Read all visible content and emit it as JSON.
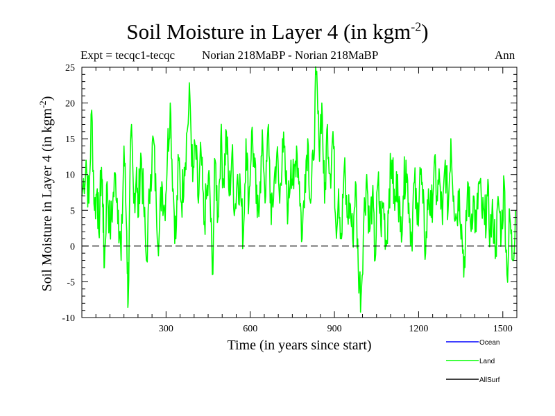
{
  "chart_data": {
    "type": "line",
    "title": "Soil Moisture in Layer 4 (in kgm",
    "title_sup": "-2",
    "title_close": ")",
    "expt_label": "Expt = tecqc1-tecqc",
    "comparison": "Norian 218MaBP - Norian 218MaBP",
    "period": "Ann",
    "xlabel": "Time (in years since start)",
    "ylabel": "Soil Moisture in Layer 4 (in kgm",
    "ylabel_sup": "-2",
    "ylabel_close": ")",
    "xlim": [
      0,
      1550
    ],
    "ylim": [
      -10,
      25
    ],
    "xticks": [
      300,
      600,
      900,
      1200,
      1500
    ],
    "yticks": [
      -10,
      -5,
      0,
      5,
      10,
      15,
      20,
      25
    ],
    "reference_line": 0,
    "legend": [
      {
        "name": "Ocean",
        "color": "#0000ff"
      },
      {
        "name": "Land",
        "color": "#00ff00"
      },
      {
        "name": "AllSurf",
        "color": "#000000"
      }
    ],
    "series": [
      {
        "name": "Land",
        "color": "#00ff00",
        "anchors": [
          [
            0,
            7
          ],
          [
            15,
            12
          ],
          [
            25,
            6
          ],
          [
            35,
            19
          ],
          [
            45,
            5
          ],
          [
            55,
            8
          ],
          [
            60,
            2
          ],
          [
            70,
            11
          ],
          [
            75,
            6
          ],
          [
            80,
            -3
          ],
          [
            90,
            9
          ],
          [
            100,
            2
          ],
          [
            110,
            6
          ],
          [
            120,
            10
          ],
          [
            130,
            5
          ],
          [
            140,
            -2
          ],
          [
            150,
            14
          ],
          [
            160,
            2
          ],
          [
            165,
            -8
          ],
          [
            175,
            16
          ],
          [
            185,
            6
          ],
          [
            195,
            11
          ],
          [
            200,
            4
          ],
          [
            210,
            13
          ],
          [
            220,
            6
          ],
          [
            230,
            -2
          ],
          [
            245,
            10
          ],
          [
            255,
            15
          ],
          [
            265,
            6
          ],
          [
            275,
            1
          ],
          [
            285,
            9
          ],
          [
            295,
            5
          ],
          [
            305,
            13
          ],
          [
            315,
            20
          ],
          [
            325,
            8
          ],
          [
            335,
            1
          ],
          [
            345,
            12
          ],
          [
            355,
            6
          ],
          [
            365,
            11
          ],
          [
            375,
            16
          ],
          [
            385,
            21
          ],
          [
            395,
            9
          ],
          [
            405,
            14
          ],
          [
            415,
            6
          ],
          [
            425,
            13
          ],
          [
            435,
            3
          ],
          [
            445,
            7
          ],
          [
            455,
            9
          ],
          [
            465,
            -4
          ],
          [
            475,
            12
          ],
          [
            485,
            4
          ],
          [
            495,
            15
          ],
          [
            505,
            9
          ],
          [
            515,
            16
          ],
          [
            525,
            7
          ],
          [
            535,
            13
          ],
          [
            545,
            5
          ],
          [
            555,
            10
          ],
          [
            565,
            8
          ],
          [
            575,
            1
          ],
          [
            585,
            15
          ],
          [
            595,
            6
          ],
          [
            605,
            16
          ],
          [
            615,
            11
          ],
          [
            625,
            4
          ],
          [
            635,
            9
          ],
          [
            645,
            14
          ],
          [
            655,
            7
          ],
          [
            665,
            17
          ],
          [
            675,
            3
          ],
          [
            685,
            9
          ],
          [
            695,
            13
          ],
          [
            705,
            6
          ],
          [
            715,
            15
          ],
          [
            725,
            10
          ],
          [
            735,
            5
          ],
          [
            745,
            12
          ],
          [
            755,
            8
          ],
          [
            765,
            14
          ],
          [
            775,
            9
          ],
          [
            785,
            1
          ],
          [
            795,
            10
          ],
          [
            805,
            15
          ],
          [
            815,
            6
          ],
          [
            825,
            12
          ],
          [
            835,
            24
          ],
          [
            845,
            14
          ],
          [
            855,
            20
          ],
          [
            865,
            6
          ],
          [
            875,
            17
          ],
          [
            885,
            10
          ],
          [
            895,
            16
          ],
          [
            905,
            3
          ],
          [
            915,
            8
          ],
          [
            925,
            1
          ],
          [
            935,
            11
          ],
          [
            945,
            4
          ],
          [
            955,
            6
          ],
          [
            965,
            1
          ],
          [
            975,
            9
          ],
          [
            985,
            -3
          ],
          [
            995,
            -7
          ],
          [
            1005,
            4
          ],
          [
            1015,
            10
          ],
          [
            1025,
            2
          ],
          [
            1035,
            7
          ],
          [
            1045,
            -2
          ],
          [
            1055,
            9
          ],
          [
            1065,
            3
          ],
          [
            1075,
            6
          ],
          [
            1085,
            0
          ],
          [
            1095,
            8
          ],
          [
            1105,
            12
          ],
          [
            1115,
            5
          ],
          [
            1125,
            10
          ],
          [
            1135,
            2
          ],
          [
            1145,
            7
          ],
          [
            1155,
            12
          ],
          [
            1165,
            6
          ],
          [
            1175,
            1
          ],
          [
            1185,
            9
          ],
          [
            1195,
            3
          ],
          [
            1205,
            11
          ],
          [
            1215,
            6
          ],
          [
            1225,
            -1
          ],
          [
            1235,
            8
          ],
          [
            1245,
            4
          ],
          [
            1255,
            11
          ],
          [
            1265,
            7
          ],
          [
            1275,
            9
          ],
          [
            1285,
            3
          ],
          [
            1295,
            12
          ],
          [
            1305,
            5
          ],
          [
            1315,
            15
          ],
          [
            1325,
            7
          ],
          [
            1335,
            4
          ],
          [
            1345,
            8
          ],
          [
            1355,
            1
          ],
          [
            1365,
            -3
          ],
          [
            1375,
            9
          ],
          [
            1385,
            3
          ],
          [
            1395,
            7
          ],
          [
            1405,
            2
          ],
          [
            1415,
            9
          ],
          [
            1425,
            5
          ],
          [
            1435,
            3
          ],
          [
            1445,
            7
          ],
          [
            1455,
            2
          ],
          [
            1465,
            4
          ],
          [
            1475,
            0
          ],
          [
            1485,
            6
          ],
          [
            1495,
            2
          ],
          [
            1505,
            9
          ],
          [
            1515,
            -4
          ],
          [
            1525,
            4
          ],
          [
            1535,
            -2
          ],
          [
            1545,
            5
          ]
        ]
      }
    ]
  }
}
